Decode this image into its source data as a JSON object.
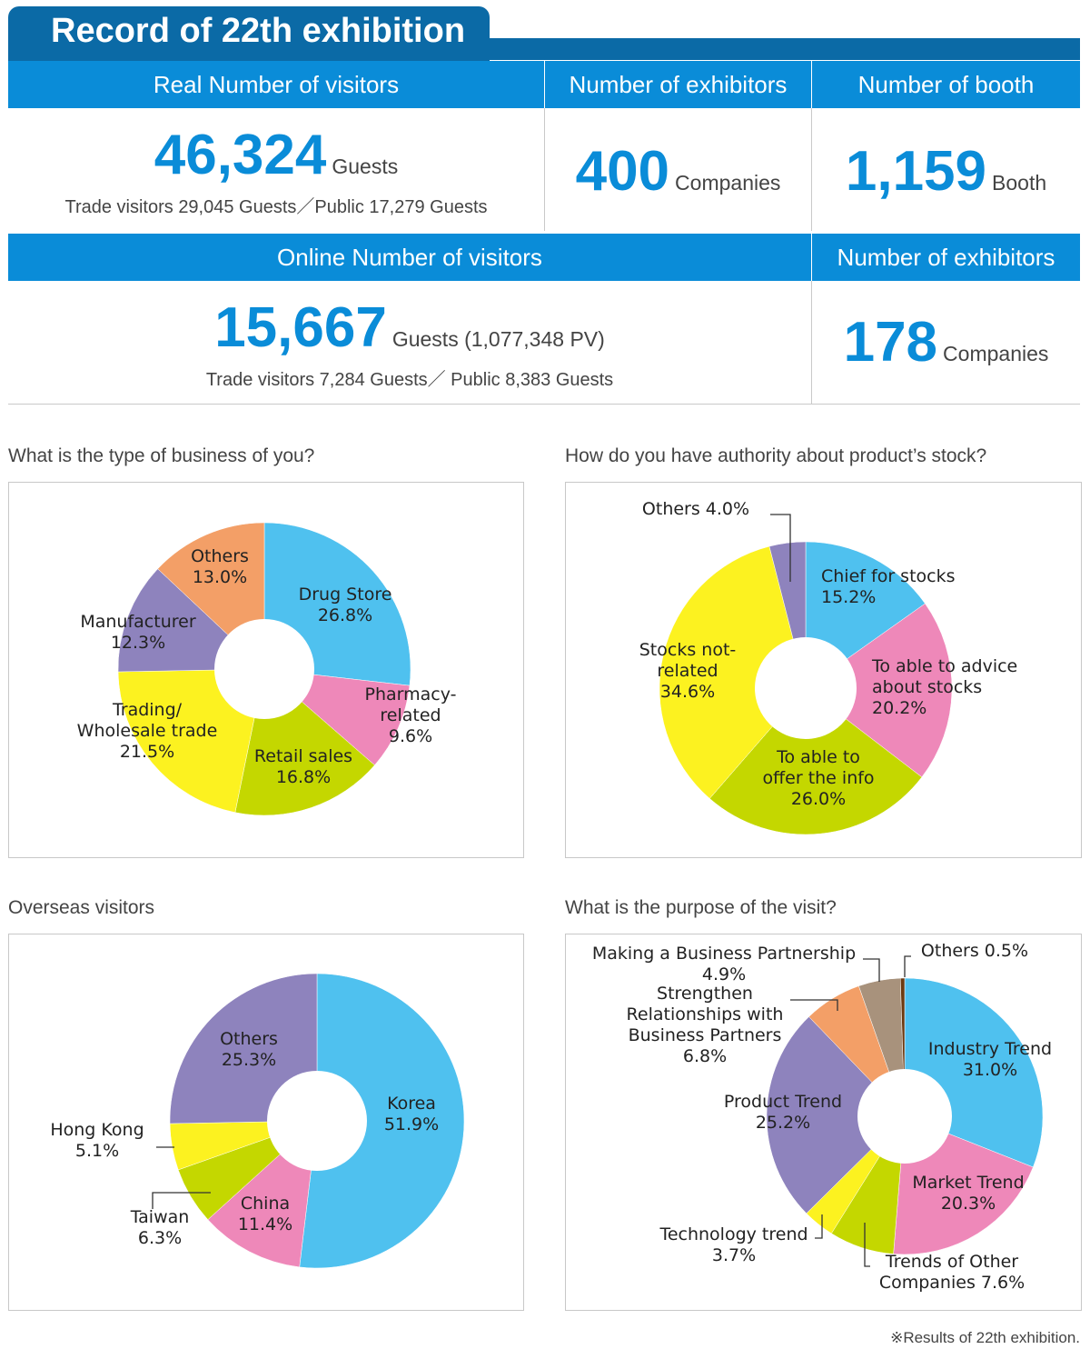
{
  "header": {
    "title": "Record of 22th exhibition"
  },
  "colors": {
    "band": "#0a8cd8",
    "header": "#0b6aa6",
    "number": "#0a8cd8"
  },
  "stats": {
    "real_visitors": {
      "label": "Real Number of visitors",
      "value": "46,324",
      "unit": "Guests",
      "breakdown": "Trade visitors 29,045 Guests／Public 17,279 Guests"
    },
    "exhibitors": {
      "label": "Number of exhibitors",
      "value": "400",
      "unit": "Companies"
    },
    "booths": {
      "label": "Number of booth",
      "value": "1,159",
      "unit": "Booth"
    },
    "online_visitors": {
      "label": "Online Number of visitors",
      "value": "15,667",
      "unit": "Guests (1,077,348 PV)",
      "breakdown": "Trade visitors 7,284 Guests／ Public 8,383 Guests"
    },
    "online_exhibitors": {
      "label": "Number of exhibitors",
      "value": "178",
      "unit": "Companies"
    }
  },
  "questions": {
    "business": "What is the type of business of you?",
    "authority": "How do you have authority about product’s stock?",
    "overseas": "Overseas visitors",
    "purpose": "What is the purpose of the visit?"
  },
  "footnote": "※Results of 22th exhibition.",
  "chart_data": [
    {
      "type": "pie",
      "title": "What is the type of business of you?",
      "donut": true,
      "slices": [
        {
          "label": "Drug Store",
          "value": 26.8,
          "display": "26.8%",
          "color": "#4fc1ef"
        },
        {
          "label": "Pharmacy-related",
          "value": 9.6,
          "display": "9.6%",
          "color": "#ee88b9"
        },
        {
          "label": "Retail sales",
          "value": 16.8,
          "display": "16.8%",
          "color": "#c4d700"
        },
        {
          "label": "Trading/ Wholesale trade",
          "value": 21.5,
          "display": "21.5%",
          "color": "#fcf220"
        },
        {
          "label": "Manufacturer",
          "value": 12.3,
          "display": "12.3%",
          "color": "#8e83bd"
        },
        {
          "label": "Others",
          "value": 13.0,
          "display": "13.0%",
          "color": "#f39f67"
        }
      ]
    },
    {
      "type": "pie",
      "title": "How do you have authority about product’s stock?",
      "donut": true,
      "slices": [
        {
          "label": "Chief for stocks",
          "value": 15.2,
          "display": "15.2%",
          "color": "#4fc1ef"
        },
        {
          "label": "To able to advice about stocks",
          "value": 20.2,
          "display": "20.2%",
          "color": "#ee88b9"
        },
        {
          "label": "To able to offer the info",
          "value": 26.0,
          "display": "26.0%",
          "color": "#c4d700"
        },
        {
          "label": "Stocks not-related",
          "value": 34.6,
          "display": "34.6%",
          "color": "#fcf220"
        },
        {
          "label": "Others",
          "value": 4.0,
          "display": "4.0%",
          "color": "#8e83bd"
        }
      ]
    },
    {
      "type": "pie",
      "title": "Overseas visitors",
      "donut": true,
      "slices": [
        {
          "label": "Korea",
          "value": 51.9,
          "display": "51.9%",
          "color": "#4fc1ef"
        },
        {
          "label": "China",
          "value": 11.4,
          "display": "11.4%",
          "color": "#ee88b9"
        },
        {
          "label": "Taiwan",
          "value": 6.3,
          "display": "6.3%",
          "color": "#c4d700"
        },
        {
          "label": "Hong Kong",
          "value": 5.1,
          "display": "5.1%",
          "color": "#fcf220"
        },
        {
          "label": "Others",
          "value": 25.3,
          "display": "25.3%",
          "color": "#8e83bd"
        }
      ]
    },
    {
      "type": "pie",
      "title": "What is the purpose of the visit?",
      "donut": true,
      "slices": [
        {
          "label": "Industry Trend",
          "value": 31.0,
          "display": "31.0%",
          "color": "#4fc1ef"
        },
        {
          "label": "Market Trend",
          "value": 20.3,
          "display": "20.3%",
          "color": "#ee88b9"
        },
        {
          "label": "Trends of Other Companies",
          "value": 7.6,
          "display": "7.6%",
          "color": "#c4d700"
        },
        {
          "label": "Technology trend",
          "value": 3.7,
          "display": "3.7%",
          "color": "#fcf220"
        },
        {
          "label": "Product Trend",
          "value": 25.2,
          "display": "25.2%",
          "color": "#8e83bd"
        },
        {
          "label": "Strengthen Relationships with Business Partners",
          "value": 6.8,
          "display": "6.8%",
          "color": "#f39f67"
        },
        {
          "label": "Making a Business Partnership",
          "value": 4.9,
          "display": "4.9%",
          "color": "#a8927c"
        },
        {
          "label": "Others",
          "value": 0.5,
          "display": "0.5%",
          "color": "#6b3a12"
        }
      ]
    }
  ]
}
